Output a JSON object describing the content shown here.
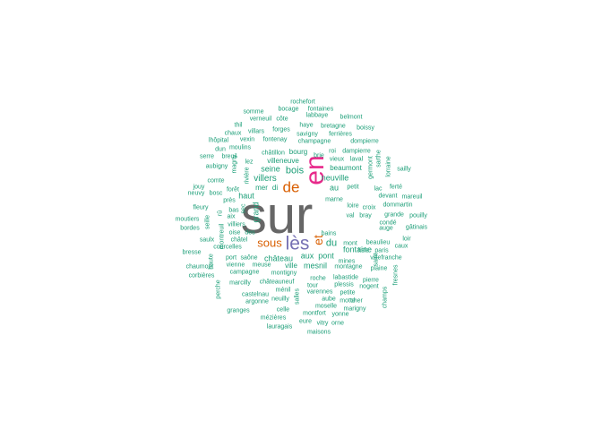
{
  "palette": {
    "gray": "#666666",
    "pink": "#E7298A",
    "orange": "#D95F02",
    "purple": "#7570B3",
    "teal": "#1B9E77"
  },
  "words": [
    {
      "text": "sur",
      "color": "gray"
    },
    {
      "text": "en",
      "color": "pink"
    },
    {
      "text": "lès",
      "color": "purple"
    },
    {
      "text": "de",
      "color": "orange"
    },
    {
      "text": "sous",
      "color": "orange"
    },
    {
      "text": "et",
      "color": "orange"
    },
    {
      "text": "bois",
      "color": "teal"
    },
    {
      "text": "villers",
      "color": "teal"
    },
    {
      "text": "du",
      "color": "teal"
    },
    {
      "text": "château",
      "color": "teal"
    },
    {
      "text": "neuville",
      "color": "teal"
    },
    {
      "text": "seine",
      "color": "teal"
    },
    {
      "text": "villeneuve",
      "color": "teal"
    },
    {
      "text": "au",
      "color": "teal"
    },
    {
      "text": "aux",
      "color": "teal"
    },
    {
      "text": "pont",
      "color": "teal"
    },
    {
      "text": "mesnil",
      "color": "teal"
    },
    {
      "text": "ville",
      "color": "teal"
    },
    {
      "text": "fontaine",
      "color": "teal"
    },
    {
      "text": "mer",
      "color": "teal"
    },
    {
      "text": "grand",
      "color": "teal"
    },
    {
      "text": "haut",
      "color": "teal"
    },
    {
      "text": "di",
      "color": "teal"
    },
    {
      "text": "bourg",
      "color": "teal"
    },
    {
      "text": "beaumont",
      "color": "teal"
    },
    {
      "text": "brie",
      "color": "teal"
    },
    {
      "text": "rochefort",
      "color": "teal"
    },
    {
      "text": "bocage",
      "color": "teal"
    },
    {
      "text": "fontaines",
      "color": "teal"
    },
    {
      "text": "labbaye",
      "color": "teal"
    },
    {
      "text": "somme",
      "color": "teal"
    },
    {
      "text": "verneuil",
      "color": "teal"
    },
    {
      "text": "côte",
      "color": "teal"
    },
    {
      "text": "belmont",
      "color": "teal"
    },
    {
      "text": "thil",
      "color": "teal"
    },
    {
      "text": "haye",
      "color": "teal"
    },
    {
      "text": "bretagne",
      "color": "teal"
    },
    {
      "text": "boissy",
      "color": "teal"
    },
    {
      "text": "chaux",
      "color": "teal"
    },
    {
      "text": "villars",
      "color": "teal"
    },
    {
      "text": "forges",
      "color": "teal"
    },
    {
      "text": "savigny",
      "color": "teal"
    },
    {
      "text": "ferrières",
      "color": "teal"
    },
    {
      "text": "lhôpital",
      "color": "teal"
    },
    {
      "text": "vexin",
      "color": "teal"
    },
    {
      "text": "fontenay",
      "color": "teal"
    },
    {
      "text": "champagne",
      "color": "teal"
    },
    {
      "text": "dompierre",
      "color": "teal"
    },
    {
      "text": "moulins",
      "color": "teal"
    },
    {
      "text": "dun",
      "color": "teal"
    },
    {
      "text": "châtillon",
      "color": "teal"
    },
    {
      "text": "roi",
      "color": "teal"
    },
    {
      "text": "dampierre",
      "color": "teal"
    },
    {
      "text": "serre",
      "color": "teal"
    },
    {
      "text": "breuil",
      "color": "teal"
    },
    {
      "text": "lez",
      "color": "teal"
    },
    {
      "text": "vieux",
      "color": "teal"
    },
    {
      "text": "laval",
      "color": "teal"
    },
    {
      "text": "aubigny",
      "color": "teal"
    },
    {
      "text": "sailly",
      "color": "teal"
    },
    {
      "text": "comte",
      "color": "teal"
    },
    {
      "text": "jouy",
      "color": "teal"
    },
    {
      "text": "forêt",
      "color": "teal"
    },
    {
      "text": "neuvy",
      "color": "teal"
    },
    {
      "text": "bosc",
      "color": "teal"
    },
    {
      "text": "près",
      "color": "teal"
    },
    {
      "text": "sec",
      "color": "teal"
    },
    {
      "text": "petit",
      "color": "teal"
    },
    {
      "text": "lac",
      "color": "teal"
    },
    {
      "text": "ferté",
      "color": "teal"
    },
    {
      "text": "mareuil",
      "color": "teal"
    },
    {
      "text": "devant",
      "color": "teal"
    },
    {
      "text": "dommartin",
      "color": "teal"
    },
    {
      "text": "fleury",
      "color": "teal"
    },
    {
      "text": "marne",
      "color": "teal"
    },
    {
      "text": "loire",
      "color": "teal"
    },
    {
      "text": "croix",
      "color": "teal"
    },
    {
      "text": "bas",
      "color": "teal"
    },
    {
      "text": "aix",
      "color": "teal"
    },
    {
      "text": "grande",
      "color": "teal"
    },
    {
      "text": "val",
      "color": "teal"
    },
    {
      "text": "bray",
      "color": "teal"
    },
    {
      "text": "moutiers",
      "color": "teal"
    },
    {
      "text": "villiers",
      "color": "teal"
    },
    {
      "text": "pouilly",
      "color": "teal"
    },
    {
      "text": "condé",
      "color": "teal"
    },
    {
      "text": "bordes",
      "color": "teal"
    },
    {
      "text": "oise",
      "color": "teal"
    },
    {
      "text": "des",
      "color": "teal"
    },
    {
      "text": "auge",
      "color": "teal"
    },
    {
      "text": "gâtinais",
      "color": "teal"
    },
    {
      "text": "saulx",
      "color": "teal"
    },
    {
      "text": "châtel",
      "color": "teal"
    },
    {
      "text": "bains",
      "color": "teal"
    },
    {
      "text": "loir",
      "color": "teal"
    },
    {
      "text": "mont",
      "color": "teal"
    },
    {
      "text": "beaulieu",
      "color": "teal"
    },
    {
      "text": "caux",
      "color": "teal"
    },
    {
      "text": "bresse",
      "color": "teal"
    },
    {
      "text": "courcelles",
      "color": "teal"
    },
    {
      "text": "lisle",
      "color": "teal"
    },
    {
      "text": "paris",
      "color": "teal"
    },
    {
      "text": "port",
      "color": "teal"
    },
    {
      "text": "saône",
      "color": "teal"
    },
    {
      "text": "mines",
      "color": "teal"
    },
    {
      "text": "villefranche",
      "color": "teal"
    },
    {
      "text": "chaumont",
      "color": "teal"
    },
    {
      "text": "vienne",
      "color": "teal"
    },
    {
      "text": "meuse",
      "color": "teal"
    },
    {
      "text": "montagne",
      "color": "teal"
    },
    {
      "text": "plaine",
      "color": "teal"
    },
    {
      "text": "corbières",
      "color": "teal"
    },
    {
      "text": "campagne",
      "color": "teal"
    },
    {
      "text": "montigny",
      "color": "teal"
    },
    {
      "text": "neuilly",
      "color": "teal"
    },
    {
      "text": "labastide",
      "color": "teal"
    },
    {
      "text": "pierre",
      "color": "teal"
    },
    {
      "text": "marcilly",
      "color": "teal"
    },
    {
      "text": "châteauneuf",
      "color": "teal"
    },
    {
      "text": "roche",
      "color": "teal"
    },
    {
      "text": "tour",
      "color": "teal"
    },
    {
      "text": "plessis",
      "color": "teal"
    },
    {
      "text": "nogent",
      "color": "teal"
    },
    {
      "text": "ménil",
      "color": "teal"
    },
    {
      "text": "varennes",
      "color": "teal"
    },
    {
      "text": "petite",
      "color": "teal"
    },
    {
      "text": "castelnau",
      "color": "teal"
    },
    {
      "text": "aube",
      "color": "teal"
    },
    {
      "text": "motte",
      "color": "teal"
    },
    {
      "text": "cher",
      "color": "teal"
    },
    {
      "text": "argonne",
      "color": "teal"
    },
    {
      "text": "moselle",
      "color": "teal"
    },
    {
      "text": "marigny",
      "color": "teal"
    },
    {
      "text": "granges",
      "color": "teal"
    },
    {
      "text": "celle",
      "color": "teal"
    },
    {
      "text": "montfort",
      "color": "teal"
    },
    {
      "text": "yonne",
      "color": "teal"
    },
    {
      "text": "mézières",
      "color": "teal"
    },
    {
      "text": "eure",
      "color": "teal"
    },
    {
      "text": "vitry",
      "color": "teal"
    },
    {
      "text": "orne",
      "color": "teal"
    },
    {
      "text": "lauragais",
      "color": "teal"
    },
    {
      "text": "maisons",
      "color": "teal"
    },
    {
      "text": "magny",
      "color": "teal"
    },
    {
      "text": "rivière",
      "color": "teal"
    },
    {
      "text": "rû",
      "color": "teal"
    },
    {
      "text": "montreuil",
      "color": "teal"
    },
    {
      "text": "seille",
      "color": "teal"
    },
    {
      "text": "haute",
      "color": "teal"
    },
    {
      "text": "perche",
      "color": "teal"
    },
    {
      "text": "salles",
      "color": "teal"
    },
    {
      "text": "germont",
      "color": "teal"
    },
    {
      "text": "sarthe",
      "color": "teal"
    },
    {
      "text": "lorraine",
      "color": "teal"
    },
    {
      "text": "saint",
      "color": "teal"
    },
    {
      "text": "fresnes",
      "color": "teal"
    },
    {
      "text": "champs",
      "color": "teal"
    }
  ]
}
